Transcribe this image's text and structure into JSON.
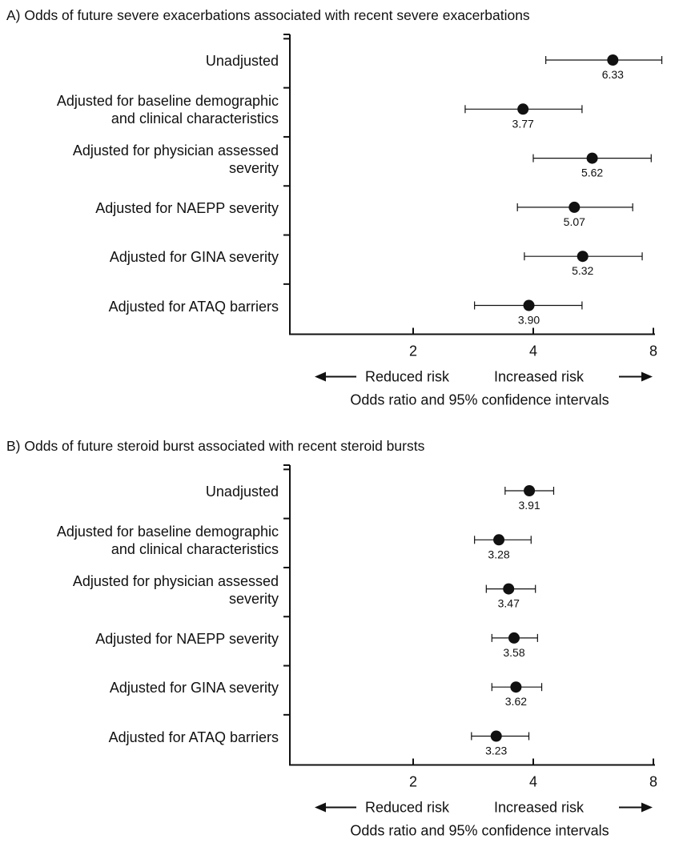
{
  "chart_data": [
    {
      "type": "forest",
      "title": "A) Odds of future severe exacerbations  associated with recent severe exacerbations",
      "xlabel": "Odds ratio and 95% confidence intervals",
      "x_scale": "log",
      "x_ticks": [
        2,
        4,
        8
      ],
      "xlim": [
        1,
        8.5
      ],
      "reduced_label": "Reduced risk",
      "increased_label": "Increased risk",
      "rows": [
        {
          "label": "Unadjusted",
          "or": 6.33,
          "ci_low": 4.3,
          "ci_high": 8.4,
          "value_label": "6.33"
        },
        {
          "label": "Adjusted for baseline demographic\nand clinical characteristics",
          "or": 3.77,
          "ci_low": 2.7,
          "ci_high": 5.3,
          "value_label": "3.77"
        },
        {
          "label": "Adjusted for physician assessed\nseverity",
          "or": 5.62,
          "ci_low": 4.0,
          "ci_high": 7.9,
          "value_label": "5.62"
        },
        {
          "label": "Adjusted for NAEPP severity",
          "or": 5.07,
          "ci_low": 3.65,
          "ci_high": 7.1,
          "value_label": "5.07"
        },
        {
          "label": "Adjusted for GINA severity",
          "or": 5.32,
          "ci_low": 3.8,
          "ci_high": 7.5,
          "value_label": "5.32"
        },
        {
          "label": "Adjusted for ATAQ barriers",
          "or": 3.9,
          "ci_low": 2.85,
          "ci_high": 5.3,
          "value_label": "3.90"
        }
      ]
    },
    {
      "type": "forest",
      "title": "B) Odds of future steroid burst associated with recent steroid bursts",
      "xlabel": "Odds ratio and 95% confidence intervals",
      "x_scale": "log",
      "x_ticks": [
        2,
        4,
        8
      ],
      "xlim": [
        1,
        8.5
      ],
      "reduced_label": "Reduced risk",
      "increased_label": "Increased risk",
      "rows": [
        {
          "label": "Unadjusted",
          "or": 3.91,
          "ci_low": 3.4,
          "ci_high": 4.5,
          "value_label": "3.91"
        },
        {
          "label": "Adjusted for baseline demographic\nand clinical characteristics",
          "or": 3.28,
          "ci_low": 2.85,
          "ci_high": 3.95,
          "value_label": "3.28"
        },
        {
          "label": "Adjusted for physician assessed\nseverity",
          "or": 3.47,
          "ci_low": 3.05,
          "ci_high": 4.05,
          "value_label": "3.47"
        },
        {
          "label": "Adjusted for NAEPP severity",
          "or": 3.58,
          "ci_low": 3.15,
          "ci_high": 4.1,
          "value_label": "3.58"
        },
        {
          "label": "Adjusted for GINA severity",
          "or": 3.62,
          "ci_low": 3.15,
          "ci_high": 4.2,
          "value_label": "3.62"
        },
        {
          "label": "Adjusted for ATAQ barriers",
          "or": 3.23,
          "ci_low": 2.8,
          "ci_high": 3.9,
          "value_label": "3.23"
        }
      ]
    }
  ]
}
